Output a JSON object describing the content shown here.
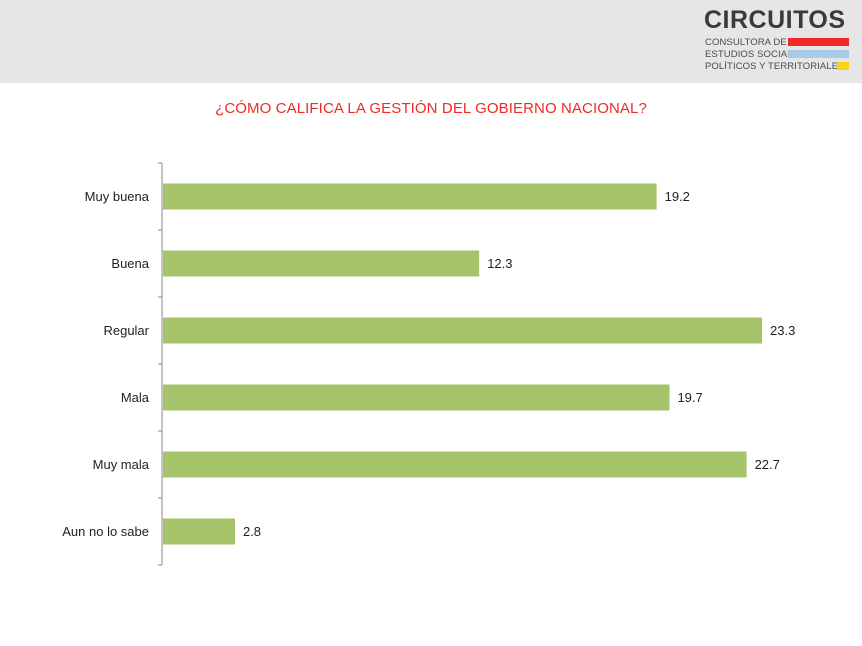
{
  "logo": {
    "name": "CIRCUITOS",
    "line1": "CONSULTORA DE",
    "line2": "ESTUDIOS SOCIALES,",
    "line3": "POLÍTICOS Y TERRITORIALES"
  },
  "colors": {
    "accent": "#ee2a24",
    "bar": "#a4c36b",
    "logo_red": "#ee2a24",
    "logo_blue": "#a9cbe8",
    "logo_yellow": "#f6d21a"
  },
  "chart_data": {
    "type": "bar",
    "orientation": "horizontal",
    "title": "¿CÓMO CALIFICA LA GESTIÓN DEL GOBIERNO NACIONAL?",
    "categories": [
      "Muy buena",
      "Buena",
      "Regular",
      "Mala",
      "Muy mala",
      "Aun no lo sabe"
    ],
    "values": [
      19.2,
      12.3,
      23.3,
      19.7,
      22.7,
      2.8
    ],
    "value_labels": [
      "19.2",
      "12.3",
      "23.3",
      "19.7",
      "22.7",
      "2.8"
    ],
    "xlim": [
      0,
      23.3
    ],
    "grid": false,
    "legend": "none"
  }
}
